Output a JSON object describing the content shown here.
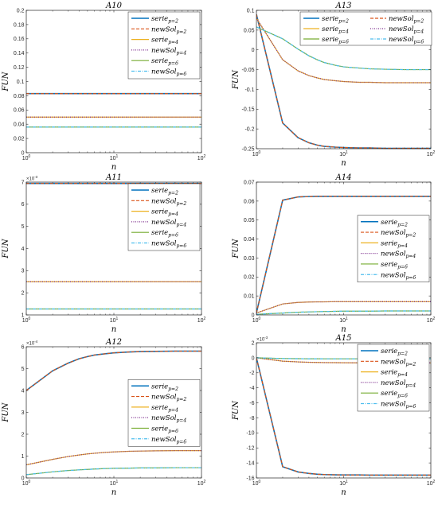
{
  "figure": {
    "xlabel": "n",
    "ylabel": "FUN"
  },
  "styles": [
    {
      "color": "#0072BD",
      "dash": "",
      "width": 1.6
    },
    {
      "color": "#D95319",
      "dash": "4,2",
      "width": 1.2
    },
    {
      "color": "#EDB120",
      "dash": "",
      "width": 1.2
    },
    {
      "color": "#7E2F8E",
      "dash": "1,1.5",
      "width": 1.3
    },
    {
      "color": "#77AC30",
      "dash": "",
      "width": 1.2
    },
    {
      "color": "#4DBEEE",
      "dash": "4,1.5,1,1.5",
      "width": 1.2
    }
  ],
  "chart_data": [
    {
      "type": "line",
      "title": "A10",
      "xscale": "log",
      "xlim": [
        1,
        100
      ],
      "ylim": [
        0,
        0.2
      ],
      "yticks": [
        0,
        0.02,
        0.04,
        0.06,
        0.08,
        0.1,
        0.12,
        0.14,
        0.16,
        0.18,
        0.2
      ],
      "ytick_labels": [
        "0",
        "0.02",
        "0.04",
        "0.06",
        "0.08",
        "0.1",
        "0.12",
        "0.14",
        "0.16",
        "0.18",
        "0.2"
      ],
      "multiplier": "",
      "xticks": [
        1,
        10,
        100
      ],
      "xtick_labels": [
        "10^0",
        "10^1",
        "10^2"
      ],
      "legend": "top-right",
      "x": [
        1,
        2,
        3,
        4,
        5,
        6,
        8,
        10,
        15,
        20,
        30,
        50,
        100
      ],
      "series": [
        {
          "name": "serie",
          "sub": "p=2",
          "values": [
            0.083,
            0.083,
            0.083,
            0.083,
            0.083,
            0.083,
            0.083,
            0.083,
            0.083,
            0.083,
            0.083,
            0.083,
            0.083
          ]
        },
        {
          "name": "newSol",
          "sub": "p=2",
          "values": [
            0.083,
            0.083,
            0.083,
            0.083,
            0.083,
            0.083,
            0.083,
            0.083,
            0.083,
            0.083,
            0.083,
            0.083,
            0.083
          ]
        },
        {
          "name": "serie",
          "sub": "p=4",
          "values": [
            0.05,
            0.05,
            0.05,
            0.05,
            0.05,
            0.05,
            0.05,
            0.05,
            0.05,
            0.05,
            0.05,
            0.05,
            0.05
          ]
        },
        {
          "name": "newSol",
          "sub": "p=4",
          "values": [
            0.05,
            0.05,
            0.05,
            0.05,
            0.05,
            0.05,
            0.05,
            0.05,
            0.05,
            0.05,
            0.05,
            0.05,
            0.05
          ]
        },
        {
          "name": "serie",
          "sub": "p=6",
          "values": [
            0.036,
            0.036,
            0.036,
            0.036,
            0.036,
            0.036,
            0.036,
            0.036,
            0.036,
            0.036,
            0.036,
            0.036,
            0.036
          ]
        },
        {
          "name": "newSol",
          "sub": "p=6",
          "values": [
            0.036,
            0.036,
            0.036,
            0.036,
            0.036,
            0.036,
            0.036,
            0.036,
            0.036,
            0.036,
            0.036,
            0.036,
            0.036
          ]
        }
      ]
    },
    {
      "type": "line",
      "title": "A13",
      "xscale": "log",
      "xlim": [
        1,
        100
      ],
      "ylim": [
        -0.25,
        0.1
      ],
      "yticks": [
        -0.25,
        -0.2,
        -0.15,
        -0.1,
        -0.05,
        0,
        0.05,
        0.1
      ],
      "ytick_labels": [
        "-0.25",
        "-0.2",
        "-0.15",
        "-0.1",
        "-0.05",
        "0",
        "0.05",
        "0.1"
      ],
      "multiplier": "",
      "xticks": [
        1,
        10,
        100
      ],
      "xtick_labels": [
        "10^0",
        "10^1",
        "10^2"
      ],
      "legend": "top-right",
      "x": [
        1,
        2,
        3,
        4,
        5,
        6,
        8,
        10,
        15,
        20,
        30,
        50,
        100
      ],
      "series": [
        {
          "name": "serie",
          "sub": "p=2",
          "values": [
            0.09,
            -0.185,
            -0.222,
            -0.235,
            -0.241,
            -0.244,
            -0.246,
            -0.247,
            -0.248,
            -0.248,
            -0.249,
            -0.249,
            -0.249
          ]
        },
        {
          "name": "newSol",
          "sub": "p=2",
          "values": [
            0.09,
            -0.185,
            -0.222,
            -0.235,
            -0.241,
            -0.244,
            -0.246,
            -0.247,
            -0.248,
            -0.248,
            -0.249,
            -0.249,
            -0.249
          ]
        },
        {
          "name": "serie",
          "sub": "p=4",
          "values": [
            0.08,
            -0.025,
            -0.053,
            -0.065,
            -0.071,
            -0.075,
            -0.078,
            -0.08,
            -0.082,
            -0.082,
            -0.083,
            -0.083,
            -0.083
          ]
        },
        {
          "name": "newSol",
          "sub": "p=4",
          "values": [
            0.08,
            -0.025,
            -0.053,
            -0.065,
            -0.071,
            -0.075,
            -0.078,
            -0.08,
            -0.082,
            -0.082,
            -0.083,
            -0.083,
            -0.083
          ]
        },
        {
          "name": "serie",
          "sub": "p=6",
          "values": [
            0.058,
            0.028,
            0.002,
            -0.015,
            -0.025,
            -0.032,
            -0.039,
            -0.043,
            -0.046,
            -0.048,
            -0.049,
            -0.05,
            -0.05
          ]
        },
        {
          "name": "newSol",
          "sub": "p=6",
          "values": [
            0.058,
            0.028,
            0.002,
            -0.015,
            -0.025,
            -0.032,
            -0.039,
            -0.043,
            -0.046,
            -0.048,
            -0.049,
            -0.05,
            -0.05
          ]
        }
      ]
    },
    {
      "type": "line",
      "title": "A11",
      "xscale": "log",
      "xlim": [
        1,
        100
      ],
      "ylim": [
        1,
        7
      ],
      "yticks": [
        1,
        2,
        3,
        4,
        5,
        6,
        7
      ],
      "ytick_labels": [
        "1",
        "2",
        "3",
        "4",
        "5",
        "6",
        "7"
      ],
      "multiplier": "×10^-3",
      "xticks": [
        1,
        10,
        100
      ],
      "xtick_labels": [
        "10^0",
        "10^1",
        "10^2"
      ],
      "legend": "top-right",
      "x": [
        1,
        2,
        3,
        4,
        5,
        6,
        8,
        10,
        15,
        20,
        30,
        50,
        100
      ],
      "series": [
        {
          "name": "serie",
          "sub": "p=2",
          "values": [
            6.94,
            6.94,
            6.94,
            6.94,
            6.94,
            6.94,
            6.94,
            6.94,
            6.94,
            6.94,
            6.94,
            6.94,
            6.94
          ]
        },
        {
          "name": "newSol",
          "sub": "p=2",
          "values": [
            6.94,
            6.94,
            6.94,
            6.94,
            6.94,
            6.94,
            6.94,
            6.94,
            6.94,
            6.94,
            6.94,
            6.94,
            6.94
          ]
        },
        {
          "name": "serie",
          "sub": "p=4",
          "values": [
            2.5,
            2.5,
            2.5,
            2.5,
            2.5,
            2.5,
            2.5,
            2.5,
            2.5,
            2.5,
            2.5,
            2.5,
            2.5
          ]
        },
        {
          "name": "newSol",
          "sub": "p=4",
          "values": [
            2.5,
            2.5,
            2.5,
            2.5,
            2.5,
            2.5,
            2.5,
            2.5,
            2.5,
            2.5,
            2.5,
            2.5,
            2.5
          ]
        },
        {
          "name": "serie",
          "sub": "p=6",
          "values": [
            1.27,
            1.27,
            1.27,
            1.27,
            1.27,
            1.27,
            1.27,
            1.27,
            1.27,
            1.27,
            1.27,
            1.27,
            1.27
          ]
        },
        {
          "name": "newSol",
          "sub": "p=6",
          "values": [
            1.27,
            1.27,
            1.27,
            1.27,
            1.27,
            1.27,
            1.27,
            1.27,
            1.27,
            1.27,
            1.27,
            1.27,
            1.27
          ]
        }
      ]
    },
    {
      "type": "line",
      "title": "A14",
      "xscale": "log",
      "xlim": [
        1,
        100
      ],
      "ylim": [
        0,
        0.07
      ],
      "yticks": [
        0,
        0.01,
        0.02,
        0.03,
        0.04,
        0.05,
        0.06,
        0.07
      ],
      "ytick_labels": [
        "0",
        "0.01",
        "0.02",
        "0.03",
        "0.04",
        "0.05",
        "0.06",
        "0.07"
      ],
      "multiplier": "",
      "xticks": [
        1,
        10,
        100
      ],
      "xtick_labels": [
        "10^0",
        "10^1",
        "10^2"
      ],
      "legend": "right",
      "x": [
        1,
        2,
        3,
        4,
        5,
        6,
        8,
        10,
        15,
        20,
        30,
        50,
        100
      ],
      "series": [
        {
          "name": "serie",
          "sub": "p=2",
          "values": [
            0.001,
            0.0605,
            0.0622,
            0.0624,
            0.0625,
            0.0625,
            0.0625,
            0.0625,
            0.0625,
            0.0625,
            0.0625,
            0.0625,
            0.0625
          ]
        },
        {
          "name": "newSol",
          "sub": "p=2",
          "values": [
            0.001,
            0.0605,
            0.0622,
            0.0624,
            0.0625,
            0.0625,
            0.0625,
            0.0625,
            0.0625,
            0.0625,
            0.0625,
            0.0625,
            0.0625
          ]
        },
        {
          "name": "serie",
          "sub": "p=4",
          "values": [
            0.001,
            0.0058,
            0.0066,
            0.0068,
            0.0069,
            0.0069,
            0.007,
            0.007,
            0.007,
            0.007,
            0.007,
            0.007,
            0.007
          ]
        },
        {
          "name": "newSol",
          "sub": "p=4",
          "values": [
            0.001,
            0.0058,
            0.0066,
            0.0068,
            0.0069,
            0.0069,
            0.007,
            0.007,
            0.007,
            0.007,
            0.007,
            0.007,
            0.007
          ]
        },
        {
          "name": "serie",
          "sub": "p=6",
          "values": [
            0.0003,
            0.001,
            0.0014,
            0.0016,
            0.0017,
            0.0018,
            0.0019,
            0.002,
            0.002,
            0.002,
            0.0021,
            0.0021,
            0.0021
          ]
        },
        {
          "name": "newSol",
          "sub": "p=6",
          "values": [
            0.0003,
            0.001,
            0.0014,
            0.0016,
            0.0017,
            0.0018,
            0.0019,
            0.002,
            0.002,
            0.002,
            0.0021,
            0.0021,
            0.0021
          ]
        }
      ]
    },
    {
      "type": "line",
      "title": "A12",
      "xscale": "log",
      "xlim": [
        1,
        100
      ],
      "ylim": [
        0,
        6
      ],
      "yticks": [
        0,
        1,
        2,
        3,
        4,
        5,
        6
      ],
      "ytick_labels": [
        "0",
        "1",
        "2",
        "3",
        "4",
        "5",
        "6"
      ],
      "multiplier": "×10^-4",
      "xticks": [
        1,
        10,
        100
      ],
      "xtick_labels": [
        "10^0",
        "10^1",
        "10^2"
      ],
      "legend": "right",
      "x": [
        1,
        2,
        3,
        4,
        5,
        6,
        8,
        10,
        15,
        20,
        30,
        50,
        100
      ],
      "series": [
        {
          "name": "serie",
          "sub": "p=2",
          "values": [
            4.0,
            4.9,
            5.25,
            5.45,
            5.55,
            5.62,
            5.68,
            5.72,
            5.76,
            5.78,
            5.79,
            5.8,
            5.8
          ]
        },
        {
          "name": "newSol",
          "sub": "p=2",
          "values": [
            4.0,
            4.9,
            5.25,
            5.45,
            5.55,
            5.62,
            5.68,
            5.72,
            5.76,
            5.78,
            5.79,
            5.8,
            5.8
          ]
        },
        {
          "name": "serie",
          "sub": "p=4",
          "values": [
            0.6,
            0.85,
            0.98,
            1.05,
            1.1,
            1.13,
            1.17,
            1.19,
            1.22,
            1.23,
            1.24,
            1.25,
            1.25
          ]
        },
        {
          "name": "newSol",
          "sub": "p=4",
          "values": [
            0.6,
            0.85,
            0.98,
            1.05,
            1.1,
            1.13,
            1.17,
            1.19,
            1.22,
            1.23,
            1.24,
            1.25,
            1.25
          ]
        },
        {
          "name": "serie",
          "sub": "p=6",
          "values": [
            0.15,
            0.28,
            0.34,
            0.37,
            0.39,
            0.41,
            0.43,
            0.44,
            0.45,
            0.46,
            0.46,
            0.47,
            0.47
          ]
        },
        {
          "name": "newSol",
          "sub": "p=6",
          "values": [
            0.15,
            0.28,
            0.34,
            0.37,
            0.39,
            0.41,
            0.43,
            0.44,
            0.45,
            0.46,
            0.46,
            0.47,
            0.47
          ]
        }
      ]
    },
    {
      "type": "line",
      "title": "A15",
      "xscale": "log",
      "xlim": [
        1,
        100
      ],
      "ylim": [
        -16,
        2
      ],
      "yticks": [
        -16,
        -14,
        -12,
        -10,
        -8,
        -6,
        -4,
        -2,
        0,
        2
      ],
      "ytick_labels": [
        "-16",
        "-14",
        "-12",
        "-10",
        "-8",
        "-6",
        "-4",
        "-2",
        "0",
        "2"
      ],
      "multiplier": "×10^-3",
      "xticks": [
        1,
        10,
        100
      ],
      "xtick_labels": [
        "10^0",
        "10^1",
        "10^2"
      ],
      "legend": "top-right",
      "x": [
        1,
        2,
        3,
        4,
        5,
        6,
        8,
        10,
        15,
        20,
        30,
        50,
        100
      ],
      "series": [
        {
          "name": "serie",
          "sub": "p=2",
          "values": [
            0.0,
            -14.5,
            -15.2,
            -15.4,
            -15.5,
            -15.55,
            -15.58,
            -15.6,
            -15.6,
            -15.62,
            -15.62,
            -15.62,
            -15.62
          ]
        },
        {
          "name": "newSol",
          "sub": "p=2",
          "values": [
            0.0,
            -14.5,
            -15.2,
            -15.4,
            -15.5,
            -15.55,
            -15.58,
            -15.6,
            -15.6,
            -15.62,
            -15.62,
            -15.62,
            -15.62
          ]
        },
        {
          "name": "serie",
          "sub": "p=4",
          "values": [
            0.0,
            -0.45,
            -0.55,
            -0.6,
            -0.62,
            -0.64,
            -0.65,
            -0.66,
            -0.67,
            -0.67,
            -0.68,
            -0.68,
            -0.68
          ]
        },
        {
          "name": "newSol",
          "sub": "p=4",
          "values": [
            0.0,
            -0.45,
            -0.55,
            -0.6,
            -0.62,
            -0.64,
            -0.65,
            -0.66,
            -0.67,
            -0.67,
            -0.68,
            -0.68,
            -0.68
          ]
        },
        {
          "name": "serie",
          "sub": "p=6",
          "values": [
            0.0,
            -0.1,
            -0.12,
            -0.13,
            -0.13,
            -0.14,
            -0.14,
            -0.14,
            -0.14,
            -0.14,
            -0.14,
            -0.14,
            -0.14
          ]
        },
        {
          "name": "newSol",
          "sub": "p=6",
          "values": [
            0.0,
            -0.1,
            -0.12,
            -0.13,
            -0.13,
            -0.14,
            -0.14,
            -0.14,
            -0.14,
            -0.14,
            -0.14,
            -0.14,
            -0.14
          ]
        }
      ]
    }
  ]
}
